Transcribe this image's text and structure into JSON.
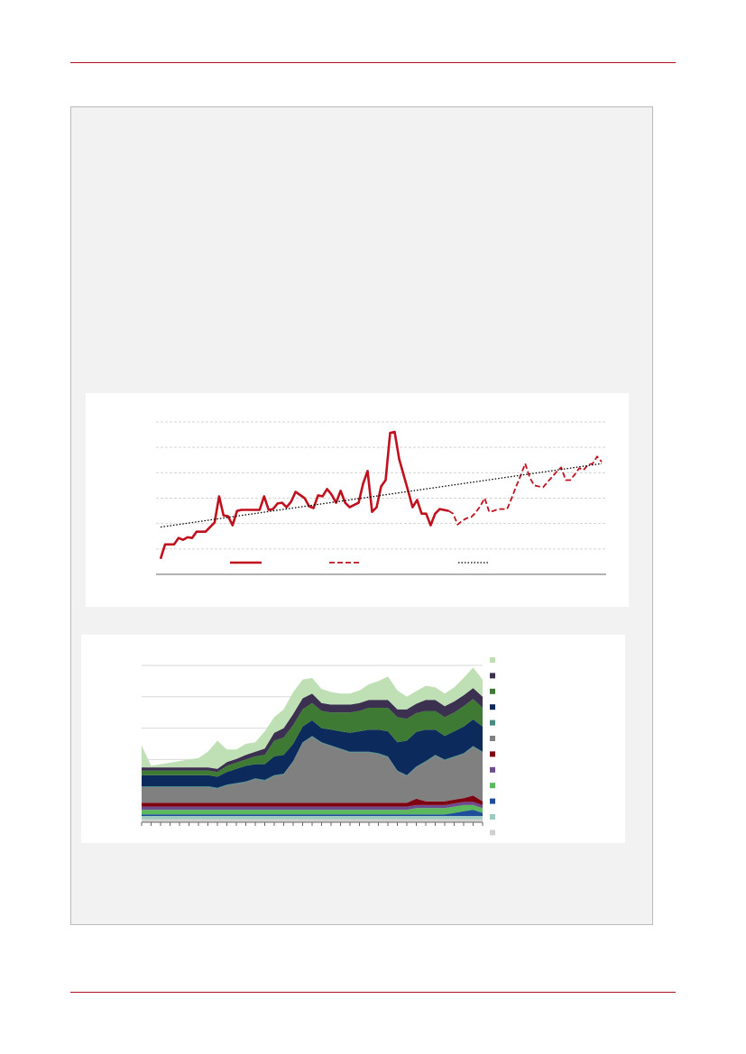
{
  "chart_data": [
    {
      "type": "line",
      "xlim": [
        0,
        100
      ],
      "ylim": [
        0,
        6
      ],
      "yticks": [
        0,
        1,
        2,
        3,
        4,
        5,
        6
      ],
      "grid": true,
      "series": [
        {
          "color": "#c0101e",
          "dash": "solid",
          "x": [
            1,
            2,
            4,
            5,
            6,
            7,
            8,
            9,
            11,
            13,
            14,
            15,
            16,
            17,
            18,
            19,
            23,
            24,
            25,
            26,
            27,
            28,
            29,
            30,
            31,
            33,
            34,
            35,
            36,
            37,
            38,
            39,
            40,
            41,
            42,
            43,
            45,
            46,
            47,
            48,
            49,
            50,
            51,
            52,
            53,
            54,
            56,
            57,
            58,
            59,
            60,
            61,
            62,
            63,
            65
          ],
          "values": [
            0.61,
            1.18,
            1.18,
            1.43,
            1.36,
            1.46,
            1.43,
            1.68,
            1.68,
            2.04,
            3.07,
            2.32,
            2.29,
            1.93,
            2.5,
            2.54,
            2.54,
            3.07,
            2.54,
            2.57,
            2.79,
            2.82,
            2.64,
            2.86,
            3.25,
            3.0,
            2.68,
            2.61,
            3.11,
            3.07,
            3.36,
            3.14,
            2.82,
            3.29,
            2.82,
            2.64,
            2.82,
            3.57,
            4.07,
            2.46,
            2.64,
            3.46,
            3.71,
            5.57,
            5.61,
            4.54,
            3.29,
            2.64,
            2.93,
            2.39,
            2.39,
            1.93,
            2.39,
            2.57,
            2.5
          ]
        },
        {
          "color": "#c0101e",
          "dash": "dashed",
          "x": [
            65,
            66,
            67,
            68,
            69,
            70,
            71,
            72,
            73,
            74,
            75,
            76,
            78,
            79,
            80,
            81,
            82,
            83,
            84,
            85,
            86,
            87,
            89,
            90,
            91,
            92,
            93,
            94,
            95,
            96,
            97,
            98,
            99
          ],
          "values": [
            2.5,
            2.39,
            1.96,
            2.11,
            2.21,
            2.25,
            2.43,
            2.68,
            3.0,
            2.46,
            2.5,
            2.57,
            2.57,
            3.0,
            3.46,
            3.89,
            4.36,
            3.82,
            3.5,
            3.46,
            3.43,
            3.64,
            4.04,
            4.21,
            3.71,
            3.71,
            3.93,
            4.18,
            4.11,
            4.32,
            4.36,
            4.64,
            4.43
          ]
        },
        {
          "color": "#000000",
          "dash": "dotted",
          "x": [
            1,
            99
          ],
          "values": [
            1.86,
            4.36
          ]
        }
      ]
    },
    {
      "type": "area",
      "stacked": true,
      "ylim": [
        0,
        5
      ],
      "yticks": [
        0,
        1,
        2,
        3,
        4,
        5
      ],
      "grid": true,
      "categories": [
        null,
        null,
        null,
        null,
        null,
        null,
        null,
        null,
        null,
        null,
        null,
        null,
        null,
        null,
        null,
        null,
        null,
        null,
        null,
        null,
        null,
        null,
        null,
        null,
        null,
        null,
        null,
        null,
        null,
        null,
        null,
        null,
        null,
        null,
        null,
        null,
        null
      ],
      "series": [
        {
          "color": "#d0d0d0",
          "values": [
            0.1,
            0.1,
            0.1,
            0.1,
            0.1,
            0.1,
            0.1,
            0.1,
            0.1,
            0.1,
            0.1,
            0.1,
            0.1,
            0.1,
            0.1,
            0.1,
            0.1,
            0.1,
            0.1,
            0.1,
            0.1,
            0.1,
            0.1,
            0.1,
            0.1,
            0.1,
            0.1,
            0.1,
            0.1,
            0.1,
            0.1,
            0.1,
            0.1,
            0.1,
            0.1,
            0.1,
            0.1
          ]
        },
        {
          "color": "#9ccac0",
          "values": [
            0.1,
            0.1,
            0.1,
            0.1,
            0.1,
            0.1,
            0.1,
            0.1,
            0.1,
            0.1,
            0.1,
            0.1,
            0.1,
            0.1,
            0.1,
            0.1,
            0.1,
            0.1,
            0.1,
            0.1,
            0.1,
            0.1,
            0.1,
            0.1,
            0.1,
            0.1,
            0.1,
            0.1,
            0.1,
            0.1,
            0.1,
            0.1,
            0.1,
            0.1,
            0.1,
            0.1,
            0.1
          ]
        },
        {
          "color": "#1f4e9a",
          "values": [
            0.05,
            0.05,
            0.05,
            0.05,
            0.05,
            0.05,
            0.05,
            0.05,
            0.05,
            0.05,
            0.05,
            0.05,
            0.05,
            0.05,
            0.05,
            0.05,
            0.05,
            0.05,
            0.05,
            0.05,
            0.05,
            0.05,
            0.05,
            0.05,
            0.05,
            0.05,
            0.05,
            0.05,
            0.05,
            0.05,
            0.05,
            0.05,
            0.05,
            0.1,
            0.15,
            0.2,
            0.1
          ]
        },
        {
          "color": "#5cb85c",
          "values": [
            0.15,
            0.15,
            0.15,
            0.15,
            0.15,
            0.15,
            0.15,
            0.15,
            0.15,
            0.15,
            0.15,
            0.15,
            0.15,
            0.15,
            0.15,
            0.15,
            0.15,
            0.15,
            0.15,
            0.15,
            0.15,
            0.15,
            0.15,
            0.15,
            0.15,
            0.15,
            0.15,
            0.15,
            0.15,
            0.2,
            0.2,
            0.2,
            0.2,
            0.2,
            0.2,
            0.15,
            0.15
          ]
        },
        {
          "color": "#6e4d8f",
          "values": [
            0.1,
            0.1,
            0.1,
            0.1,
            0.1,
            0.1,
            0.1,
            0.1,
            0.1,
            0.1,
            0.1,
            0.1,
            0.1,
            0.1,
            0.1,
            0.1,
            0.1,
            0.1,
            0.1,
            0.1,
            0.1,
            0.1,
            0.1,
            0.1,
            0.1,
            0.1,
            0.1,
            0.1,
            0.1,
            0.1,
            0.1,
            0.1,
            0.1,
            0.1,
            0.1,
            0.1,
            0.1
          ]
        },
        {
          "color": "#7f0010",
          "values": [
            0.12,
            0.12,
            0.12,
            0.12,
            0.12,
            0.12,
            0.12,
            0.12,
            0.12,
            0.12,
            0.12,
            0.12,
            0.12,
            0.12,
            0.12,
            0.12,
            0.12,
            0.12,
            0.12,
            0.12,
            0.12,
            0.12,
            0.12,
            0.12,
            0.12,
            0.12,
            0.12,
            0.12,
            0.12,
            0.2,
            0.12,
            0.12,
            0.12,
            0.12,
            0.12,
            0.2,
            0.12
          ]
        },
        {
          "color": "#808080",
          "values": [
            0.5,
            0.5,
            0.5,
            0.5,
            0.5,
            0.5,
            0.5,
            0.5,
            0.45,
            0.55,
            0.6,
            0.65,
            0.75,
            0.7,
            0.85,
            0.9,
            1.3,
            1.9,
            2.1,
            1.9,
            1.8,
            1.7,
            1.6,
            1.6,
            1.6,
            1.55,
            1.45,
            1.0,
            0.85,
            1.0,
            1.25,
            1.45,
            1.3,
            1.35,
            1.4,
            1.55,
            1.55
          ]
        },
        {
          "color": "#4a8a85",
          "values": [
            0.03,
            0.03,
            0.03,
            0.03,
            0.03,
            0.03,
            0.03,
            0.03,
            0.03,
            0.03,
            0.03,
            0.03,
            0.03,
            0.03,
            0.03,
            0.03,
            0.03,
            0.03,
            0.03,
            0.03,
            0.03,
            0.03,
            0.03,
            0.03,
            0.03,
            0.03,
            0.03,
            0.03,
            0.03,
            0.03,
            0.03,
            0.03,
            0.03,
            0.03,
            0.03,
            0.03,
            0.03
          ]
        },
        {
          "color": "#0d2a5c",
          "values": [
            0.35,
            0.35,
            0.35,
            0.35,
            0.35,
            0.35,
            0.35,
            0.35,
            0.35,
            0.4,
            0.45,
            0.5,
            0.45,
            0.5,
            0.6,
            0.6,
            0.55,
            0.5,
            0.5,
            0.45,
            0.5,
            0.55,
            0.6,
            0.65,
            0.7,
            0.75,
            0.8,
            0.9,
            1.1,
            1.1,
            1.0,
            0.8,
            0.75,
            0.8,
            0.85,
            0.85,
            0.8
          ]
        },
        {
          "color": "#3f7a35",
          "values": [
            0.15,
            0.15,
            0.15,
            0.15,
            0.15,
            0.15,
            0.15,
            0.15,
            0.15,
            0.2,
            0.2,
            0.2,
            0.25,
            0.3,
            0.5,
            0.55,
            0.6,
            0.55,
            0.55,
            0.55,
            0.55,
            0.6,
            0.65,
            0.65,
            0.7,
            0.7,
            0.75,
            0.8,
            0.7,
            0.6,
            0.6,
            0.6,
            0.6,
            0.6,
            0.65,
            0.65,
            0.6
          ]
        },
        {
          "color": "#3b3050",
          "values": [
            0.1,
            0.1,
            0.1,
            0.1,
            0.1,
            0.1,
            0.1,
            0.1,
            0.1,
            0.12,
            0.12,
            0.15,
            0.15,
            0.2,
            0.25,
            0.3,
            0.35,
            0.35,
            0.3,
            0.25,
            0.25,
            0.25,
            0.25,
            0.25,
            0.25,
            0.25,
            0.25,
            0.25,
            0.3,
            0.3,
            0.35,
            0.35,
            0.35,
            0.35,
            0.35,
            0.35,
            0.35
          ]
        },
        {
          "color": "#bfe0b4",
          "values": [
            0.7,
            0.05,
            0.1,
            0.15,
            0.2,
            0.25,
            0.3,
            0.5,
            0.9,
            0.4,
            0.3,
            0.35,
            0.3,
            0.55,
            0.5,
            0.6,
            0.7,
            0.6,
            0.5,
            0.45,
            0.4,
            0.35,
            0.35,
            0.4,
            0.5,
            0.6,
            0.75,
            0.6,
            0.4,
            0.4,
            0.45,
            0.4,
            0.4,
            0.45,
            0.55,
            0.65,
            0.55
          ]
        }
      ]
    }
  ]
}
